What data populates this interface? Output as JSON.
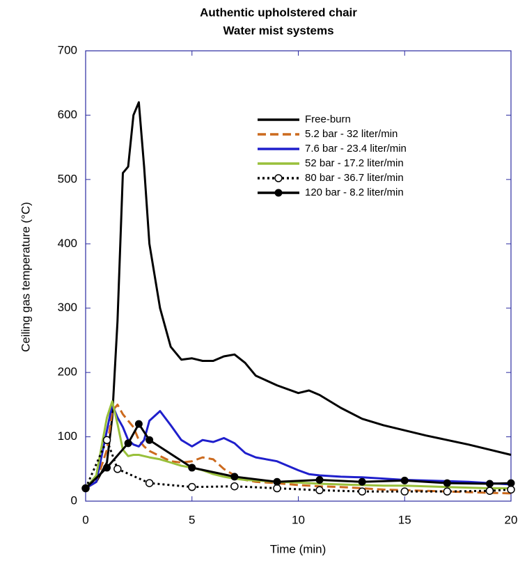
{
  "chart_data": {
    "type": "line",
    "title": "Authentic upholstered chair",
    "subtitle": "Water mist systems",
    "x_label": "Time (min)",
    "y_label": "Ceiling gas temperature (°C)",
    "xlim": [
      0,
      20
    ],
    "xticks": [
      0,
      5,
      10,
      15,
      20
    ],
    "ylim": [
      0,
      700
    ],
    "yticks": [
      0,
      100,
      200,
      300,
      400,
      500,
      600,
      700
    ],
    "grid": false,
    "legend": "upper-right",
    "series": [
      {
        "name": "Free-burn",
        "color": "#000000",
        "dash": "solid",
        "marker": "none",
        "x": [
          0,
          0.5,
          1,
          1.25,
          1.5,
          1.75,
          2,
          2.25,
          2.5,
          2.75,
          3,
          3.5,
          4,
          4.5,
          5,
          5.5,
          6,
          6.5,
          7,
          7.5,
          8,
          9,
          10,
          10.5,
          11,
          12,
          13,
          14,
          15,
          16,
          17,
          18,
          19,
          20
        ],
        "values": [
          20,
          30,
          60,
          130,
          280,
          510,
          520,
          600,
          620,
          520,
          400,
          300,
          240,
          220,
          222,
          218,
          218,
          225,
          228,
          215,
          195,
          180,
          168,
          172,
          165,
          145,
          128,
          118,
          110,
          102,
          95,
          88,
          80,
          72
        ]
      },
      {
        "name": "5.2 bar - 32 liter/min",
        "color": "#cc6a1e",
        "dash": "dashed",
        "marker": "none",
        "x": [
          0,
          0.5,
          1,
          1.25,
          1.5,
          1.75,
          2,
          2.25,
          2.5,
          2.75,
          3,
          3.5,
          4,
          4.5,
          5,
          5.5,
          6,
          6.5,
          7,
          7.5,
          8,
          9,
          10,
          10.5,
          11,
          12,
          13,
          14,
          15,
          16,
          17,
          18,
          19,
          20
        ],
        "values": [
          20,
          30,
          80,
          140,
          150,
          135,
          125,
          115,
          95,
          85,
          78,
          70,
          62,
          60,
          62,
          68,
          65,
          50,
          40,
          33,
          30,
          28,
          25,
          24,
          23,
          22,
          20,
          18,
          17,
          16,
          15,
          14,
          13,
          12
        ]
      },
      {
        "name": "7.6 bar - 23.4 liter/min",
        "color": "#1f1fcc",
        "dash": "solid",
        "marker": "none",
        "x": [
          0,
          0.5,
          1,
          1.25,
          1.5,
          1.75,
          2,
          2.25,
          2.5,
          2.75,
          3,
          3.5,
          4,
          4.5,
          5,
          5.5,
          6,
          6.5,
          7,
          7.5,
          8,
          9,
          10,
          10.5,
          11,
          12,
          13,
          14,
          15,
          16,
          17,
          18,
          19,
          20
        ],
        "values": [
          20,
          30,
          110,
          150,
          130,
          115,
          95,
          88,
          85,
          95,
          125,
          140,
          118,
          95,
          85,
          95,
          92,
          98,
          90,
          75,
          68,
          62,
          48,
          42,
          40,
          38,
          37,
          35,
          33,
          32,
          31,
          30,
          28,
          26
        ]
      },
      {
        "name": "52 bar - 17.2 liter/min",
        "color": "#99c03b",
        "dash": "solid",
        "marker": "none",
        "x": [
          0,
          0.5,
          1,
          1.25,
          1.5,
          1.75,
          2,
          2.25,
          2.5,
          2.75,
          3,
          3.5,
          4,
          4.5,
          5,
          5.5,
          6,
          6.5,
          7,
          7.5,
          8,
          9,
          10,
          10.5,
          11,
          12,
          13,
          14,
          15,
          16,
          17,
          18,
          19,
          20
        ],
        "values": [
          20,
          40,
          130,
          155,
          120,
          80,
          70,
          72,
          72,
          70,
          68,
          65,
          60,
          55,
          52,
          48,
          42,
          38,
          35,
          33,
          32,
          30,
          29,
          28,
          27,
          26,
          25,
          24,
          24,
          23,
          22,
          21,
          20,
          20
        ]
      },
      {
        "name": "80 bar - 36.7 liter/min",
        "color": "#000000",
        "dash": "dotted",
        "marker": "circle-open",
        "x": [
          0,
          1,
          1.5,
          3,
          5,
          7,
          9,
          11,
          13,
          15,
          17,
          19,
          20
        ],
        "values": [
          20,
          95,
          50,
          28,
          22,
          23,
          20,
          17,
          15,
          15,
          15,
          16,
          18
        ]
      },
      {
        "name": "120 bar - 8.2 liter/min",
        "color": "#000000",
        "dash": "solid",
        "marker": "circle-filled",
        "x": [
          0,
          1,
          2,
          2.5,
          3,
          5,
          7,
          9,
          11,
          13,
          15,
          17,
          19,
          20
        ],
        "values": [
          20,
          52,
          90,
          120,
          95,
          52,
          38,
          30,
          33,
          30,
          32,
          28,
          27,
          28
        ]
      }
    ]
  }
}
